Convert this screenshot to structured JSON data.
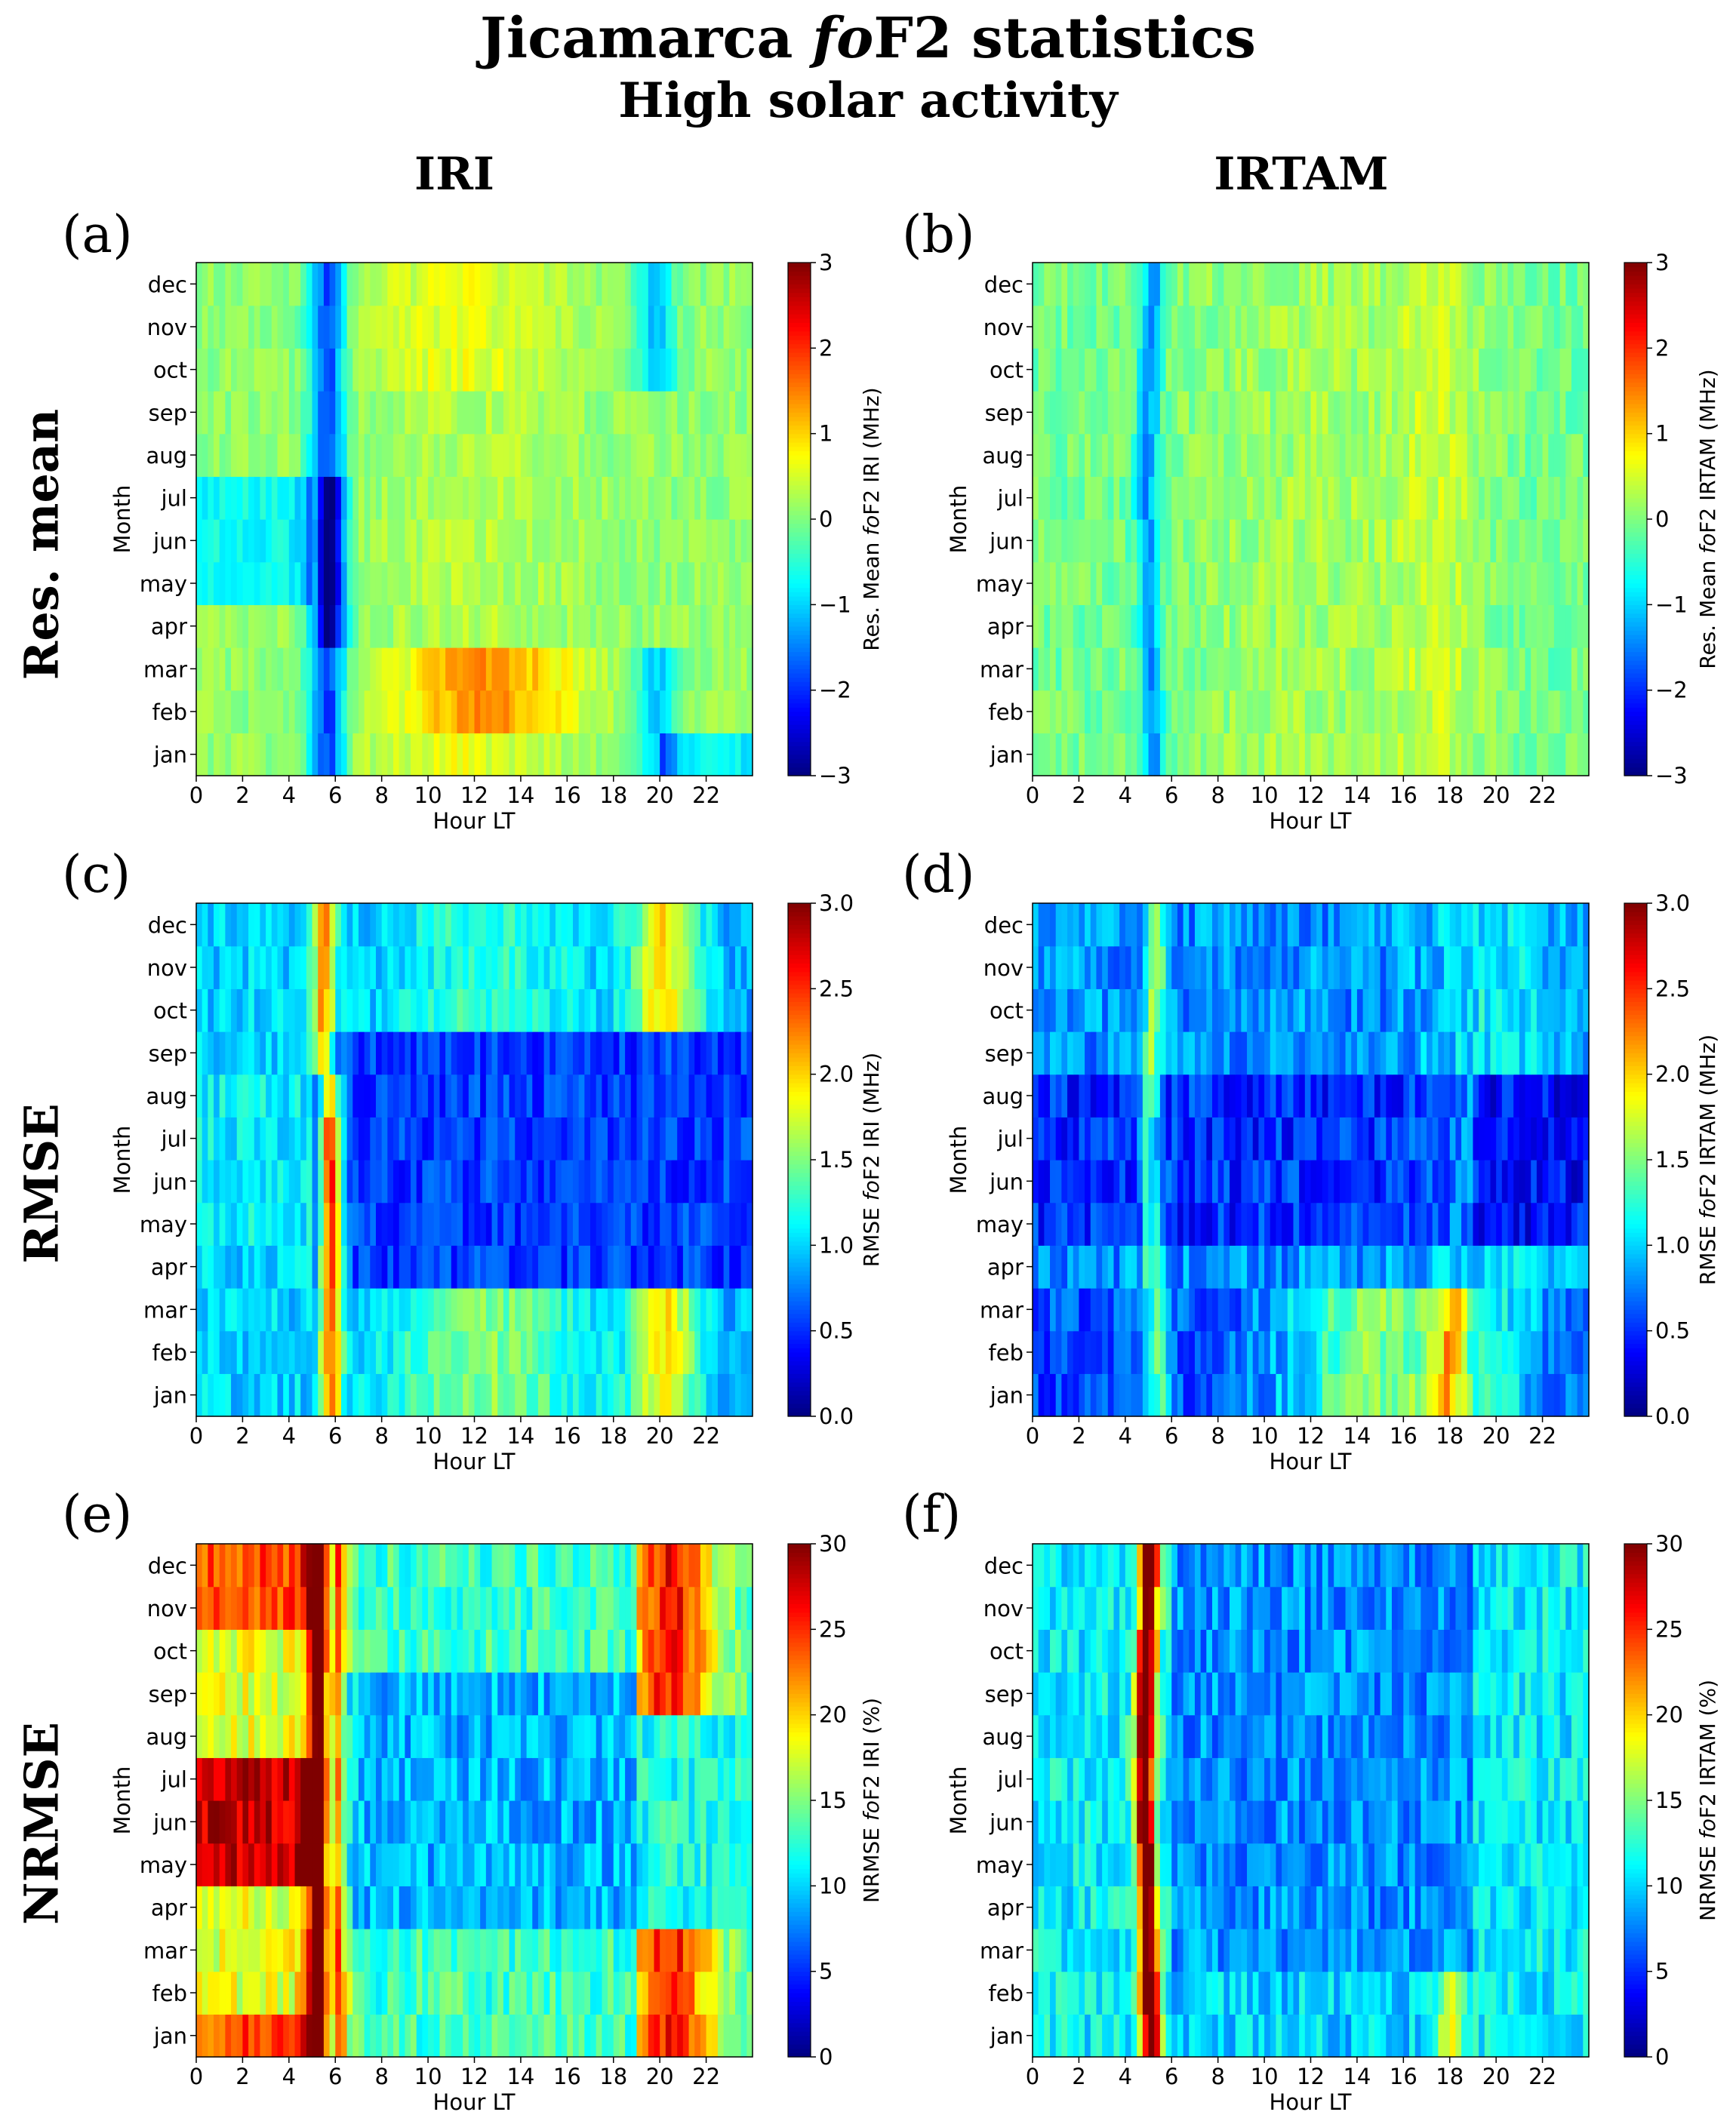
{
  "figure": {
    "title_prefix": "Jicamarca ",
    "title_italic": "fo",
    "title_suffix": "F2 statistics",
    "subtitle": "High solar activity",
    "columns": [
      "IRI",
      "IRTAM"
    ],
    "rows": [
      "Res. mean",
      "RMSE",
      "NRMSE"
    ],
    "months": [
      "jan",
      "feb",
      "mar",
      "apr",
      "may",
      "jun",
      "jul",
      "aug",
      "sep",
      "oct",
      "nov",
      "dec"
    ],
    "colormap": [
      "#00007f",
      "#0000ff",
      "#007fff",
      "#00ffff",
      "#7fff7f",
      "#ffff00",
      "#ff7f00",
      "#ff0000",
      "#7f0000"
    ]
  },
  "chart_data": [
    {
      "type": "heatmap",
      "panel": "(a)",
      "model": "IRI",
      "metric": "mean",
      "xlabel": "Hour LT",
      "ylabel": "Month",
      "cbar_label_prefix": "Res. Mean ",
      "cbar_label_italic": "fo",
      "cbar_label_suffix": "F2 IRI (MHz)",
      "xlim": [
        0,
        24
      ],
      "xticks": [
        0,
        2,
        4,
        6,
        8,
        10,
        12,
        14,
        16,
        18,
        20,
        22
      ],
      "vmin": -3,
      "vmax": 3,
      "cbar_ticks": [
        "−3",
        "−2",
        "−1",
        "0",
        "1",
        "2",
        "3"
      ]
    },
    {
      "type": "heatmap",
      "panel": "(b)",
      "model": "IRTAM",
      "metric": "mean",
      "xlabel": "Hour LT",
      "ylabel": "Month",
      "cbar_label_prefix": "Res. Mean ",
      "cbar_label_italic": "fo",
      "cbar_label_suffix": "F2 IRTAM (MHz)",
      "xlim": [
        0,
        24
      ],
      "xticks": [
        0,
        2,
        4,
        6,
        8,
        10,
        12,
        14,
        16,
        18,
        20,
        22
      ],
      "vmin": -3,
      "vmax": 3,
      "cbar_ticks": [
        "−3",
        "−2",
        "−1",
        "0",
        "1",
        "2",
        "3"
      ]
    },
    {
      "type": "heatmap",
      "panel": "(c)",
      "model": "IRI",
      "metric": "rmse",
      "xlabel": "Hour LT",
      "ylabel": "Month",
      "cbar_label_prefix": "RMSE ",
      "cbar_label_italic": "fo",
      "cbar_label_suffix": "F2 IRI (MHz)",
      "xlim": [
        0,
        24
      ],
      "xticks": [
        0,
        2,
        4,
        6,
        8,
        10,
        12,
        14,
        16,
        18,
        20,
        22
      ],
      "vmin": 0,
      "vmax": 3,
      "cbar_ticks": [
        "0.0",
        "0.5",
        "1.0",
        "1.5",
        "2.0",
        "2.5",
        "3.0"
      ]
    },
    {
      "type": "heatmap",
      "panel": "(d)",
      "model": "IRTAM",
      "metric": "rmse",
      "xlabel": "Hour LT",
      "ylabel": "Month",
      "cbar_label_prefix": "RMSE ",
      "cbar_label_italic": "fo",
      "cbar_label_suffix": "F2 IRTAM (MHz)",
      "xlim": [
        0,
        24
      ],
      "xticks": [
        0,
        2,
        4,
        6,
        8,
        10,
        12,
        14,
        16,
        18,
        20,
        22
      ],
      "vmin": 0,
      "vmax": 3,
      "cbar_ticks": [
        "0.0",
        "0.5",
        "1.0",
        "1.5",
        "2.0",
        "2.5",
        "3.0"
      ]
    },
    {
      "type": "heatmap",
      "panel": "(e)",
      "model": "IRI",
      "metric": "nrmse",
      "xlabel": "Hour LT",
      "ylabel": "Month",
      "cbar_label_prefix": "NRMSE ",
      "cbar_label_italic": "fo",
      "cbar_label_suffix": "F2 IRI (%)",
      "xlim": [
        0,
        24
      ],
      "xticks": [
        0,
        2,
        4,
        6,
        8,
        10,
        12,
        14,
        16,
        18,
        20,
        22
      ],
      "vmin": 0,
      "vmax": 30,
      "cbar_ticks": [
        "0",
        "5",
        "10",
        "15",
        "20",
        "25",
        "30"
      ]
    },
    {
      "type": "heatmap",
      "panel": "(f)",
      "model": "IRTAM",
      "metric": "nrmse",
      "xlabel": "Hour LT",
      "ylabel": "Month",
      "cbar_label_prefix": "NRMSE ",
      "cbar_label_italic": "fo",
      "cbar_label_suffix": "F2 IRTAM (%)",
      "xlim": [
        0,
        24
      ],
      "xticks": [
        0,
        2,
        4,
        6,
        8,
        10,
        12,
        14,
        16,
        18,
        20,
        22
      ],
      "vmin": 0,
      "vmax": 30,
      "cbar_ticks": [
        "0",
        "5",
        "10",
        "15",
        "20",
        "25",
        "30"
      ]
    }
  ]
}
